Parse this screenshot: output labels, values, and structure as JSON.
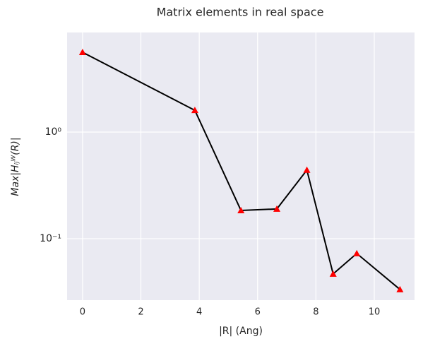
{
  "chart_data": {
    "type": "line",
    "title": "Matrix elements in real space",
    "xlabel": "|R| (Ang)",
    "ylabel": "Max|Hᵢⱼᵂ(R)|",
    "x": [
      0,
      3.85,
      5.43,
      6.66,
      7.69,
      8.59,
      9.4,
      10.88
    ],
    "series": [
      {
        "name": "Max",
        "color": "#000000",
        "marker_color": "#ff0000",
        "values": [
          5.6,
          1.6,
          0.184,
          0.19,
          0.44,
          0.0467,
          0.0726,
          0.0334
        ]
      }
    ],
    "xlim": [
      -0.53,
      11.38
    ],
    "xticks": [
      0,
      2,
      4,
      6,
      8,
      10
    ],
    "ylim": [
      0.0265,
      8.59
    ],
    "yticks": [
      {
        "value": 1,
        "label": "10⁰"
      },
      {
        "value": 0.1,
        "label": "10⁻¹"
      }
    ],
    "log_y": true,
    "grid": true,
    "background": "#eaeaf2"
  }
}
